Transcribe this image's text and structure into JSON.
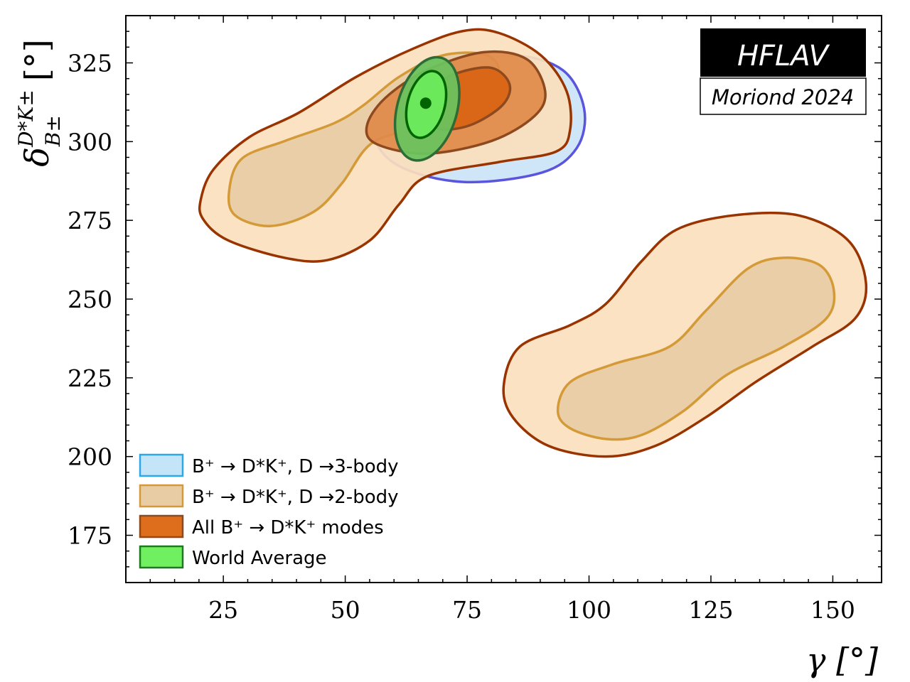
{
  "chart_data": {
    "type": "contour",
    "title": "",
    "xlabel": "γ [°]",
    "ylabel_main": "δ",
    "ylabel_sup": "D*K±",
    "ylabel_sub": "B±",
    "ylabel_unit": "[°]",
    "xlim": [
      5,
      160
    ],
    "ylim": [
      160,
      340
    ],
    "xticks": [
      25,
      50,
      75,
      100,
      125,
      150
    ],
    "yticks": [
      175,
      200,
      225,
      250,
      275,
      300,
      325
    ],
    "minor_step": 5,
    "grid": false,
    "legend_placement": "lower-left",
    "badge": {
      "title": "HFLAV",
      "subtitle": "Moriond 2024"
    },
    "series": [
      {
        "name": "B⁺ → D*K⁺, D →3-body",
        "legend_text": "B⁺ → D*K⁺, D →3-body",
        "fill": "#cfe6f8",
        "edge": "#5a55dc",
        "legend_fill": "#c4e4f8",
        "legend_edge": "#2aa8e8",
        "contours": [
          {
            "level": "2σ",
            "points": [
              [
                99.0,
                310.4
              ],
              [
                97.5,
                298.0
              ],
              [
                90.2,
                290.1
              ],
              [
                74.2,
                287.2
              ],
              [
                61.0,
                292.3
              ],
              [
                55.9,
                302.5
              ],
              [
                58.8,
                316.0
              ],
              [
                69.8,
                323.9
              ],
              [
                84.4,
                327.3
              ],
              [
                94.6,
                322.7
              ]
            ]
          }
        ]
      },
      {
        "name": "B⁺ → D*K⁺, D →2-body",
        "legend_text": "B⁺ → D*K⁺, D →2-body",
        "fill": "#fbdfbd",
        "fill_inner": "#e8cca4",
        "edge": "#993300",
        "edge_inner": "#d49a38",
        "legend_fill": "#e8cca4",
        "legend_edge": "#d49a38",
        "contours": [
          {
            "level": "2σ",
            "points": [
              [
                20.4,
                281.8
              ],
              [
                23.0,
                291.2
              ],
              [
                30.3,
                301.4
              ],
              [
                40.5,
                309.2
              ],
              [
                52.2,
                320.5
              ],
              [
                63.9,
                329.5
              ],
              [
                74.1,
                335.1
              ],
              [
                81.5,
                334.5
              ],
              [
                90.2,
                327.3
              ],
              [
                95.4,
                316.0
              ],
              [
                96.1,
                303.6
              ],
              [
                93.2,
                296.8
              ],
              [
                81.5,
                293.5
              ],
              [
                66.8,
                289.0
              ],
              [
                61.0,
                280.0
              ],
              [
                55.1,
                268.7
              ],
              [
                46.4,
                262.4
              ],
              [
                37.6,
                263.1
              ],
              [
                25.9,
                268.7
              ],
              [
                20.8,
                275.5
              ]
            ]
          },
          {
            "level": "2σ",
            "points": [
              [
                82.5,
                222.5
              ],
              [
                85.8,
                234.9
              ],
              [
                96.1,
                241.7
              ],
              [
                103.4,
                248.4
              ],
              [
                110.7,
                261.9
              ],
              [
                118.0,
                272.1
              ],
              [
                129.7,
                276.6
              ],
              [
                142.9,
                276.6
              ],
              [
                153.1,
                268.7
              ],
              [
                156.8,
                255.2
              ],
              [
                154.6,
                243.9
              ],
              [
                145.8,
                234.9
              ],
              [
                134.1,
                223.6
              ],
              [
                123.9,
                212.4
              ],
              [
                113.6,
                203.4
              ],
              [
                103.4,
                200.0
              ],
              [
                91.7,
                203.4
              ],
              [
                84.4,
                212.4
              ]
            ]
          },
          {
            "level": "1σ",
            "points": [
              [
                26.2,
                284.5
              ],
              [
                28.8,
                294.6
              ],
              [
                37.6,
                300.2
              ],
              [
                47.8,
                305.9
              ],
              [
                53.7,
                311.5
              ],
              [
                61.0,
                320.5
              ],
              [
                69.8,
                327.3
              ],
              [
                78.5,
                327.7
              ],
              [
                81.5,
                322.7
              ],
              [
                78.5,
                316.0
              ],
              [
                63.9,
                304.7
              ],
              [
                55.1,
                299.1
              ],
              [
                49.3,
                286.7
              ],
              [
                43.5,
                277.7
              ],
              [
                34.7,
                273.2
              ],
              [
                27.4,
                276.6
              ]
            ]
          },
          {
            "level": "1σ",
            "points": [
              [
                93.6,
                214.6
              ],
              [
                96.1,
                223.6
              ],
              [
                104.9,
                229.3
              ],
              [
                116.5,
                234.9
              ],
              [
                123.9,
                246.2
              ],
              [
                132.6,
                259.7
              ],
              [
                139.9,
                263.1
              ],
              [
                147.3,
                260.8
              ],
              [
                150.2,
                252.9
              ],
              [
                148.7,
                243.9
              ],
              [
                139.9,
                234.9
              ],
              [
                128.2,
                225.9
              ],
              [
                119.5,
                214.6
              ],
              [
                110.7,
                206.8
              ],
              [
                103.4,
                205.6
              ],
              [
                96.1,
                209.0
              ]
            ]
          }
        ]
      },
      {
        "name": "All B⁺ → D*K⁺ modes",
        "legend_text": "All B⁺ → D*K⁺ modes",
        "fill": "#e08a4a",
        "fill_inner": "#d96414",
        "edge": "#8e4a1e",
        "legend_fill": "#de6e1c",
        "legend_edge": "#8e4a1e",
        "contours": [
          {
            "level": "2σ",
            "points": [
              [
                54.4,
                304.7
              ],
              [
                58.1,
                313.7
              ],
              [
                66.8,
                322.7
              ],
              [
                78.5,
                328.4
              ],
              [
                87.3,
                326.1
              ],
              [
                91.0,
                316.0
              ],
              [
                88.8,
                308.1
              ],
              [
                80.0,
                300.2
              ],
              [
                66.8,
                296.2
              ],
              [
                56.6,
                299.1
              ]
            ]
          },
          {
            "level": "1σ",
            "points": [
              [
                66.8,
                316.0
              ],
              [
                72.7,
                321.6
              ],
              [
                80.0,
                323.4
              ],
              [
                83.7,
                318.2
              ],
              [
                82.2,
                311.5
              ],
              [
                75.6,
                305.2
              ],
              [
                69.0,
                304.1
              ],
              [
                66.8,
                309.2
              ]
            ]
          }
        ]
      },
      {
        "name": "World Average",
        "legend_text": "World Average",
        "fill": "#6cc25e",
        "fill_inner": "#6cea5c",
        "edge": "#2e6b35",
        "edge_inner": "#006400",
        "legend_fill": "#70f060",
        "legend_edge": "#1e7a1e",
        "central": [
          66.5,
          312.2
        ],
        "ellipses": [
          {
            "level": "2σ",
            "center": [
              66.8,
              310.4
            ],
            "sigma": [
              6.6,
              16.4
            ],
            "rho": 0.3
          },
          {
            "level": "1σ",
            "center": [
              66.6,
              311.8
            ],
            "sigma": [
              4.1,
              10.6
            ],
            "rho": 0.3
          }
        ]
      }
    ]
  }
}
